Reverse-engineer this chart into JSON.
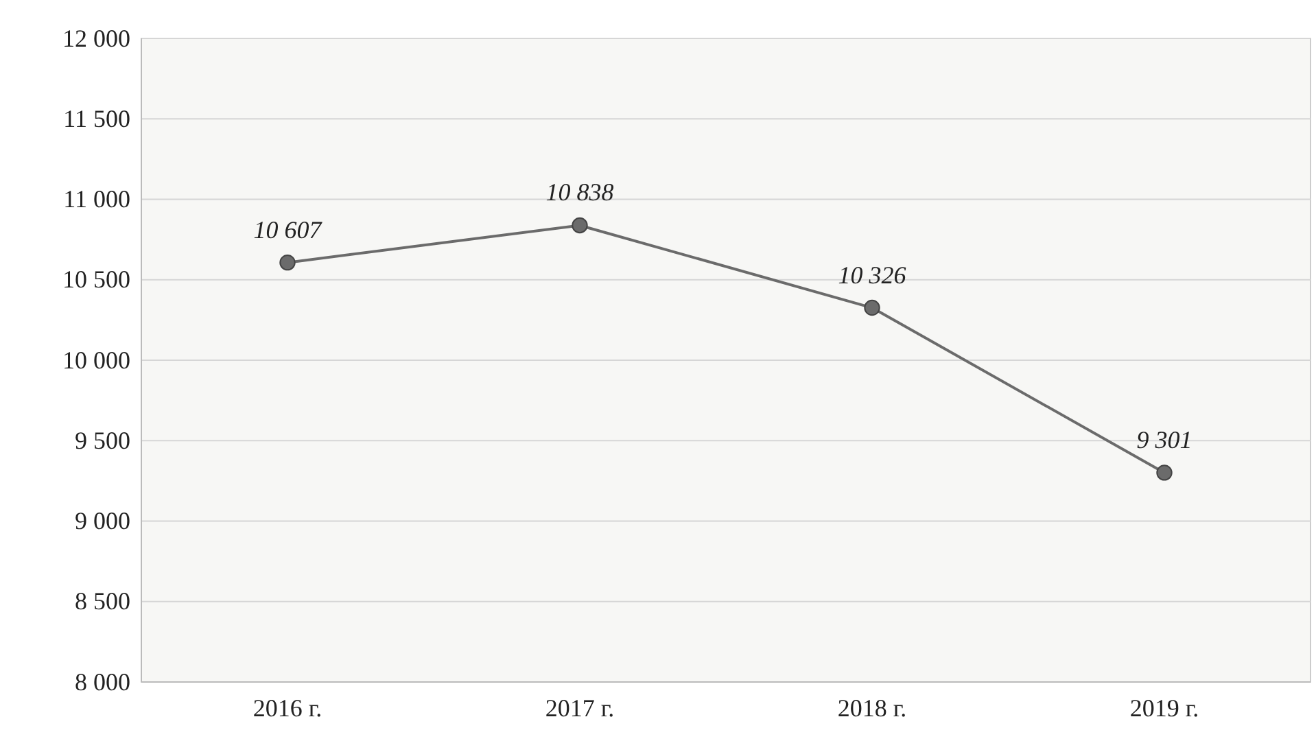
{
  "chart_data": {
    "type": "line",
    "categories": [
      "2016 г.",
      "2017 г.",
      "2018 г.",
      "2019 г."
    ],
    "series": [
      {
        "color": "#6b6b6b",
        "values": [
          10607,
          10838,
          10326,
          9301
        ]
      }
    ],
    "value_labels": [
      "10 607",
      "10 838",
      "10 326",
      "9 301"
    ],
    "ylim": [
      8000,
      12000
    ],
    "yticks": [
      {
        "value": 8000,
        "label": "8 000"
      },
      {
        "value": 8500,
        "label": "8 500"
      },
      {
        "value": 9000,
        "label": "9 000"
      },
      {
        "value": 9500,
        "label": "9 500"
      },
      {
        "value": 10000,
        "label": "10 000"
      },
      {
        "value": 10500,
        "label": "10 500"
      },
      {
        "value": 11000,
        "label": "11 000"
      },
      {
        "value": 11500,
        "label": "11 500"
      },
      {
        "value": 12000,
        "label": "12 000"
      }
    ],
    "grid": "y",
    "marker": "circle",
    "line_style": "solid"
  }
}
